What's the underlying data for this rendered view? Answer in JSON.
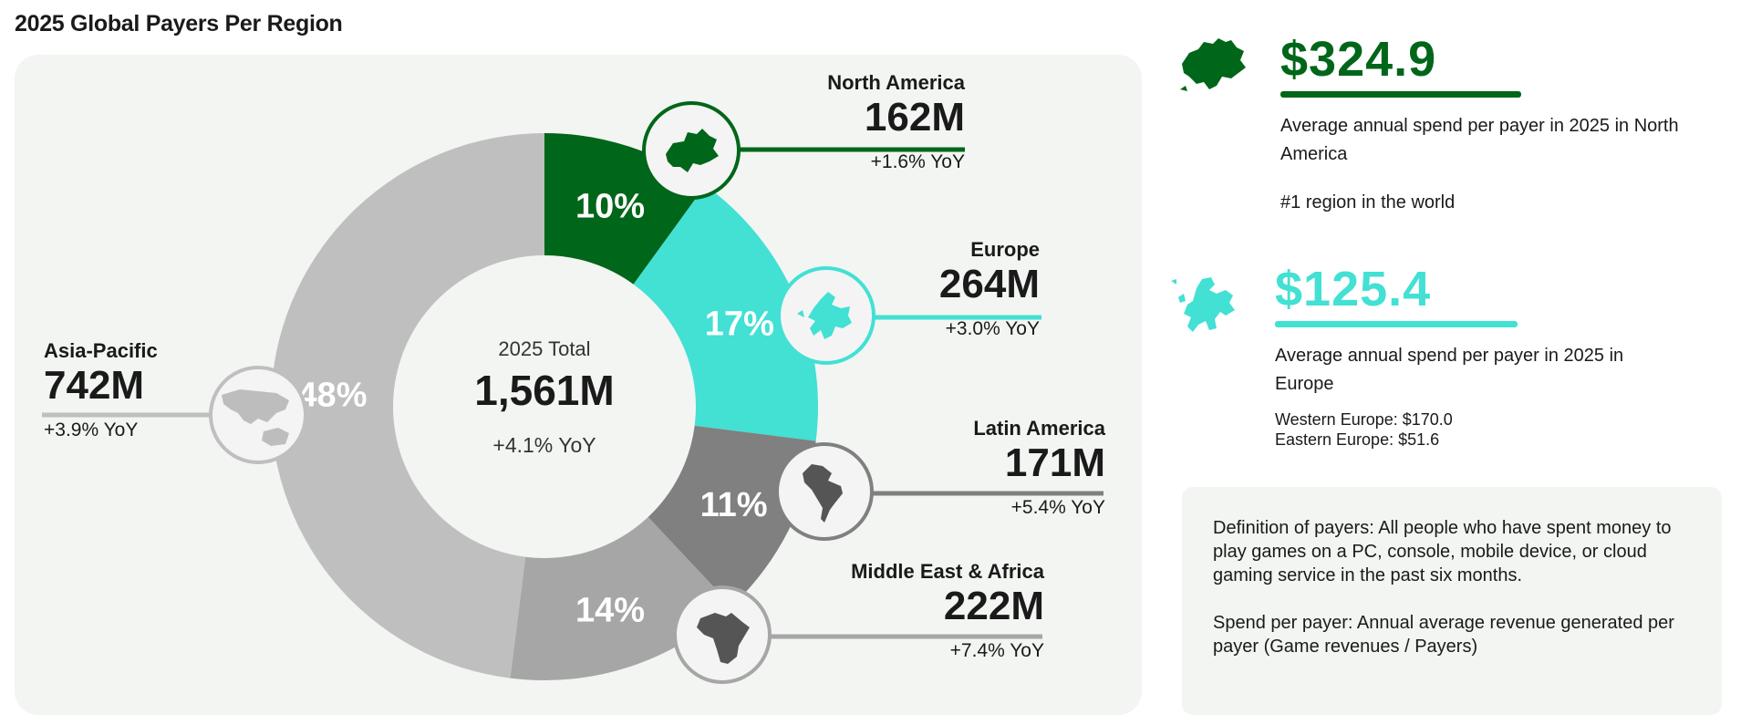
{
  "title": "2025 Global Payers Per Region",
  "center": {
    "label": "2025 Total",
    "value": "1,561M",
    "yoy": "+4.1% YoY"
  },
  "chart_data": {
    "type": "pie",
    "title": "2025 Global Payers Per Region",
    "center_label": "2025 Total",
    "total": "1,561M",
    "slices": [
      {
        "name": "North America",
        "percent": 10,
        "percent_label": "10%",
        "value_label": "162M",
        "yoy": "+1.6% YoY",
        "color": "#006619",
        "text_color": "#ffffff"
      },
      {
        "name": "Europe",
        "percent": 17,
        "percent_label": "17%",
        "value_label": "264M",
        "yoy": "+3.0% YoY",
        "color": "#43e0d4",
        "text_color": "#ffffff"
      },
      {
        "name": "Latin America",
        "percent": 11,
        "percent_label": "11%",
        "value_label": "171M",
        "yoy": "+5.4% YoY",
        "color": "#808080",
        "text_color": "#ffffff"
      },
      {
        "name": "Middle East & Africa",
        "percent": 14,
        "percent_label": "14%",
        "value_label": "222M",
        "yoy": "+7.4% YoY",
        "color": "#a6a6a6",
        "text_color": "#ffffff"
      },
      {
        "name": "Asia-Pacific",
        "percent": 48,
        "percent_label": "48%",
        "value_label": "742M",
        "yoy": "+3.9% YoY",
        "color": "#bfbfbf",
        "text_color": "#ffffff"
      }
    ]
  },
  "stats": {
    "north_america": {
      "value": "$324.9",
      "desc": "Average annual spend per payer in 2025 in North America",
      "note": "#1 region in the world",
      "color": "#006619"
    },
    "europe": {
      "value": "$125.4",
      "desc": "Average annual spend per payer in 2025 in Europe",
      "western": "Western Europe: $170.0",
      "eastern": "Eastern Europe: $51.6",
      "color": "#43e0d4"
    }
  },
  "definitions": {
    "payers": "Definition of payers: All people who have spent money to play games on a PC, console, mobile device, or cloud gaming service in the past six months.",
    "spend": "Spend per payer: Annual average revenue generated per payer (Game revenues / Payers)"
  },
  "icons": {
    "north_america": "north-america-map-icon",
    "europe": "europe-map-icon",
    "latin_america": "south-america-map-icon",
    "mea": "africa-map-icon",
    "apac": "asia-pacific-map-icon"
  }
}
